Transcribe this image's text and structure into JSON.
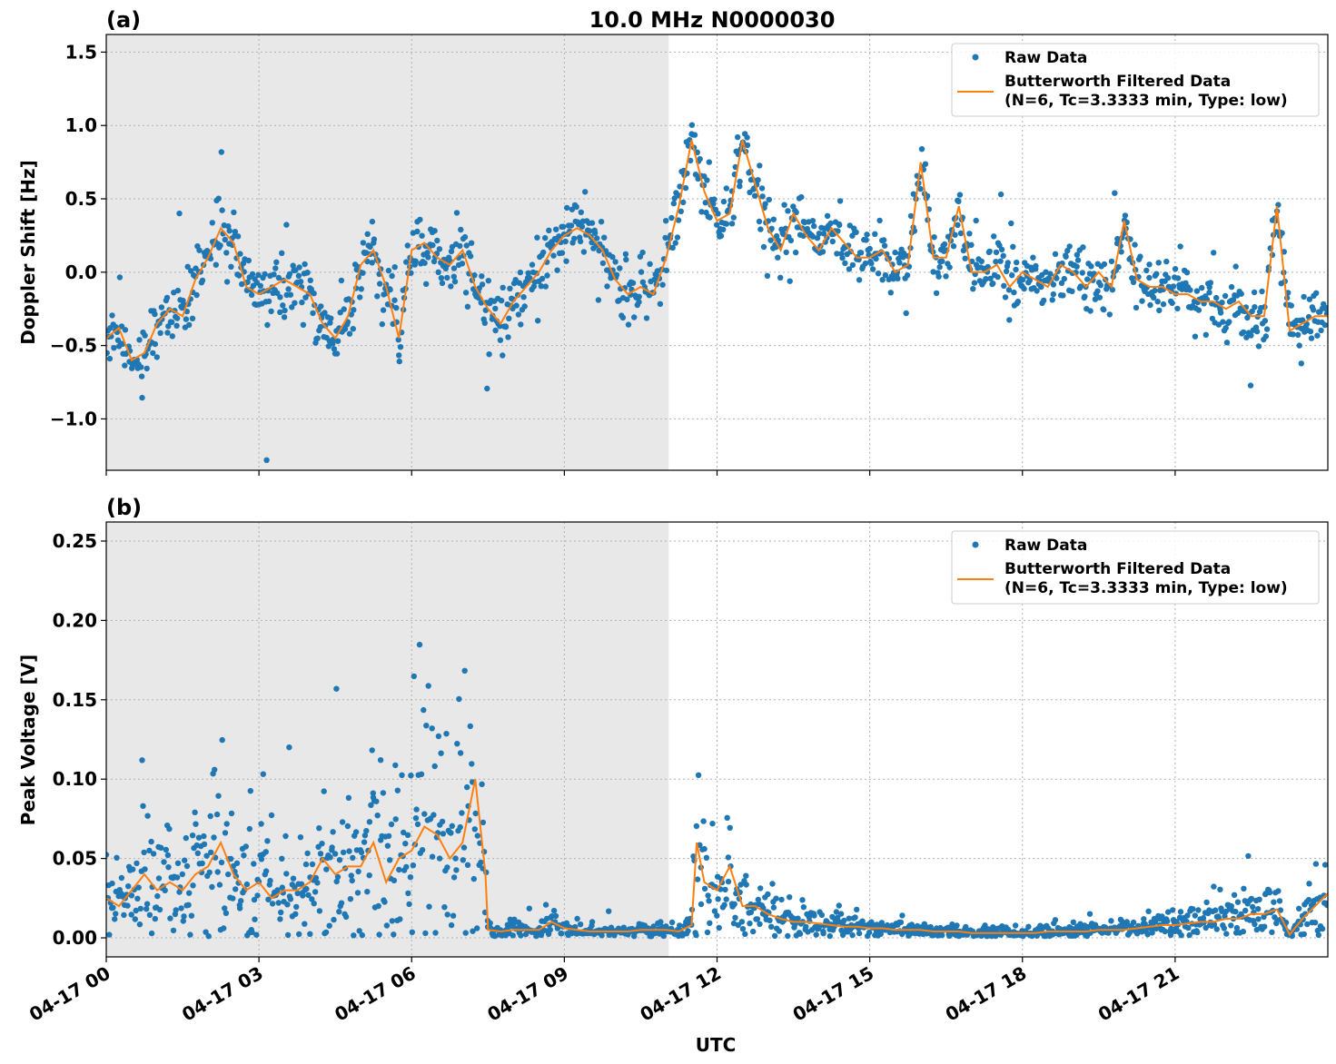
{
  "figure": {
    "title": "10.0 MHz N0000030",
    "xlabel": "UTC",
    "colors": {
      "raw": "#1f77b4",
      "filtered": "#ff7f0e",
      "shade": "#e8e8e8",
      "grid": "#b0b0b0"
    }
  },
  "chart_data": [
    {
      "type": "scatter",
      "panel_label": "(a)",
      "ylabel": "Doppler Shift [Hz]",
      "xlim": [
        0,
        24
      ],
      "ylim": [
        -1.35,
        1.62
      ],
      "yticks": [
        -1.0,
        -0.5,
        0.0,
        0.5,
        1.0,
        1.5
      ],
      "ytick_labels": [
        "−1.0",
        "−0.5",
        "0.0",
        "0.5",
        "1.0",
        "1.5"
      ],
      "xticks": [
        0,
        3,
        6,
        9,
        12,
        15,
        18,
        21
      ],
      "xtick_labels": [
        "04-17 00",
        "04-17 03",
        "04-17 06",
        "04-17 09",
        "04-17 12",
        "04-17 15",
        "04-17 18",
        "04-17 21"
      ],
      "shaded_region": [
        0,
        11.05
      ],
      "grid": true,
      "legend_position": "top-right",
      "legend": [
        "Raw Data",
        "Butterworth Filtered Data",
        "(N=6, Tc=3.3333 min, Type: low)"
      ],
      "series": [
        {
          "name": "Butterworth Filtered Data",
          "x": [
            0,
            0.25,
            0.5,
            0.75,
            1.0,
            1.25,
            1.5,
            1.75,
            2.0,
            2.25,
            2.5,
            2.75,
            3.0,
            3.25,
            3.5,
            3.75,
            4.0,
            4.25,
            4.5,
            4.75,
            5.0,
            5.25,
            5.5,
            5.75,
            6.0,
            6.25,
            6.5,
            6.75,
            7.0,
            7.25,
            7.5,
            7.75,
            8.0,
            8.25,
            8.5,
            8.75,
            9.0,
            9.25,
            9.5,
            9.75,
            10.0,
            10.25,
            10.5,
            10.75,
            11.0,
            11.25,
            11.5,
            11.75,
            12.0,
            12.25,
            12.5,
            12.75,
            13.0,
            13.25,
            13.5,
            13.75,
            14.0,
            14.25,
            14.5,
            14.75,
            15.0,
            15.25,
            15.5,
            15.75,
            16.0,
            16.25,
            16.5,
            16.75,
            17.0,
            17.25,
            17.5,
            17.75,
            18.0,
            18.25,
            18.5,
            18.75,
            19.0,
            19.25,
            19.5,
            19.75,
            20.0,
            20.25,
            20.5,
            20.75,
            21.0,
            21.25,
            21.5,
            21.75,
            22.0,
            22.25,
            22.5,
            22.75,
            23.0,
            23.25,
            23.5,
            23.75,
            24.0
          ],
          "y": [
            -0.45,
            -0.38,
            -0.6,
            -0.55,
            -0.35,
            -0.25,
            -0.3,
            -0.05,
            0.1,
            0.3,
            0.2,
            -0.1,
            -0.15,
            -0.1,
            -0.05,
            -0.1,
            -0.15,
            -0.35,
            -0.45,
            -0.3,
            0.05,
            0.15,
            -0.1,
            -0.45,
            0.15,
            0.2,
            0.1,
            0.05,
            0.15,
            -0.1,
            -0.25,
            -0.35,
            -0.2,
            -0.1,
            0.0,
            0.15,
            0.25,
            0.3,
            0.25,
            0.15,
            -0.05,
            -0.15,
            -0.1,
            -0.15,
            0.1,
            0.45,
            0.9,
            0.55,
            0.35,
            0.4,
            0.9,
            0.6,
            0.3,
            0.15,
            0.4,
            0.25,
            0.15,
            0.3,
            0.2,
            0.1,
            0.1,
            0.15,
            0.0,
            0.05,
            0.75,
            0.1,
            0.1,
            0.45,
            0.0,
            0.0,
            0.05,
            -0.1,
            0.0,
            -0.05,
            -0.1,
            0.05,
            0.0,
            -0.1,
            0.0,
            -0.1,
            0.35,
            -0.05,
            -0.1,
            -0.1,
            -0.15,
            -0.15,
            -0.2,
            -0.2,
            -0.25,
            -0.2,
            -0.3,
            -0.3,
            0.45,
            -0.4,
            -0.35,
            -0.3,
            -0.3
          ]
        }
      ]
    },
    {
      "type": "scatter",
      "panel_label": "(b)",
      "ylabel": "Peak Voltage [V]",
      "xlim": [
        0,
        24
      ],
      "ylim": [
        -0.012,
        0.262
      ],
      "yticks": [
        0.0,
        0.05,
        0.1,
        0.15,
        0.2,
        0.25
      ],
      "ytick_labels": [
        "0.00",
        "0.05",
        "0.10",
        "0.15",
        "0.20",
        "0.25"
      ],
      "xticks": [
        0,
        3,
        6,
        9,
        12,
        15,
        18,
        21
      ],
      "xtick_labels": [
        "04-17 00",
        "04-17 03",
        "04-17 06",
        "04-17 09",
        "04-17 12",
        "04-17 15",
        "04-17 18",
        "04-17 21"
      ],
      "shaded_region": [
        0,
        11.05
      ],
      "grid": true,
      "legend_position": "top-right",
      "legend": [
        "Raw Data",
        "Butterworth Filtered Data",
        "(N=6, Tc=3.3333 min, Type: low)"
      ],
      "series": [
        {
          "name": "Butterworth Filtered Data",
          "x": [
            0,
            0.25,
            0.5,
            0.75,
            1.0,
            1.25,
            1.5,
            1.75,
            2.0,
            2.25,
            2.5,
            2.75,
            3.0,
            3.25,
            3.5,
            3.75,
            4.0,
            4.25,
            4.5,
            4.75,
            5.0,
            5.25,
            5.5,
            5.75,
            6.0,
            6.25,
            6.5,
            6.75,
            7.0,
            7.25,
            7.45,
            7.5,
            7.75,
            8.0,
            8.25,
            8.5,
            8.75,
            9.0,
            9.25,
            9.5,
            9.75,
            10.0,
            10.25,
            10.5,
            10.75,
            11.0,
            11.25,
            11.5,
            11.6,
            11.75,
            12.0,
            12.25,
            12.5,
            12.75,
            13.0,
            13.25,
            13.5,
            13.75,
            14.0,
            14.25,
            14.5,
            14.75,
            15.0,
            15.25,
            15.5,
            15.75,
            16.0,
            16.25,
            16.5,
            16.75,
            17.0,
            17.25,
            17.5,
            17.75,
            18.0,
            18.25,
            18.5,
            18.75,
            19.0,
            19.25,
            19.5,
            19.75,
            20.0,
            20.25,
            20.5,
            20.75,
            21.0,
            21.25,
            21.5,
            21.75,
            22.0,
            22.25,
            22.5,
            22.75,
            23.0,
            23.25,
            23.5,
            23.75,
            24.0
          ],
          "y": [
            0.025,
            0.02,
            0.03,
            0.04,
            0.03,
            0.035,
            0.03,
            0.04,
            0.045,
            0.06,
            0.04,
            0.03,
            0.035,
            0.025,
            0.03,
            0.03,
            0.035,
            0.05,
            0.04,
            0.045,
            0.045,
            0.06,
            0.035,
            0.05,
            0.055,
            0.07,
            0.065,
            0.05,
            0.06,
            0.1,
            0.04,
            0.005,
            0.004,
            0.005,
            0.005,
            0.005,
            0.01,
            0.006,
            0.005,
            0.004,
            0.004,
            0.004,
            0.004,
            0.005,
            0.005,
            0.005,
            0.004,
            0.008,
            0.06,
            0.035,
            0.03,
            0.045,
            0.02,
            0.02,
            0.015,
            0.012,
            0.01,
            0.01,
            0.009,
            0.008,
            0.007,
            0.007,
            0.006,
            0.006,
            0.005,
            0.005,
            0.005,
            0.004,
            0.004,
            0.004,
            0.003,
            0.003,
            0.003,
            0.003,
            0.003,
            0.003,
            0.004,
            0.004,
            0.004,
            0.004,
            0.005,
            0.005,
            0.005,
            0.006,
            0.007,
            0.008,
            0.008,
            0.009,
            0.01,
            0.01,
            0.012,
            0.012,
            0.015,
            0.015,
            0.018,
            0.002,
            0.012,
            0.02,
            0.028
          ]
        }
      ]
    }
  ]
}
